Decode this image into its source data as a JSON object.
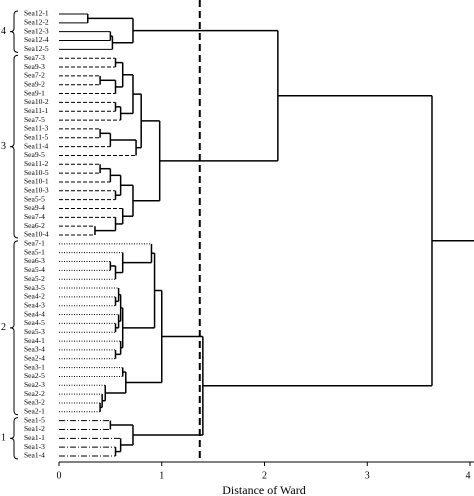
{
  "chart_data": {
    "type": "dendrogram",
    "xlabel": "Distance of Ward",
    "xlim": [
      0,
      4
    ],
    "xticks": [
      0,
      1,
      2,
      3,
      4
    ],
    "threshold": 1.37,
    "tree": {
      "height": 3.63,
      "children": [
        {
          "height": 2.13,
          "children": [
            {
              "group": "4",
              "line_style": "solid",
              "height": 0.72,
              "children": [
                {
                  "height": 0.28,
                  "children": [
                    "Sea12-1",
                    "Sea12-2"
                  ]
                },
                {
                  "height": 0.52,
                  "children": [
                    {
                      "height": 0.5,
                      "children": [
                        "Sea12-3",
                        "Sea12-4"
                      ]
                    },
                    "Sea12-5"
                  ]
                }
              ]
            },
            {
              "group": "3",
              "line_style": "dashed",
              "height": 0.98,
              "children": [
                {
                  "height": 0.8,
                  "children": [
                    {
                      "height": 0.72,
                      "children": [
                        {
                          "height": 0.62,
                          "children": [
                            {
                              "height": 0.55,
                              "children": [
                                "Sea7-3",
                                "Sea9-3"
                              ]
                            },
                            {
                              "height": 0.55,
                              "children": [
                                {
                                  "height": 0.4,
                                  "children": [
                                    "Sea7-2",
                                    "Sea9-2"
                                  ]
                                },
                                "Sea9-1"
                              ]
                            }
                          ]
                        },
                        {
                          "height": 0.6,
                          "children": [
                            {
                              "height": 0.55,
                              "children": [
                                "Sea10-2",
                                "Sea11-1"
                              ]
                            },
                            "Sea7-5"
                          ]
                        }
                      ]
                    },
                    {
                      "height": 0.75,
                      "children": [
                        {
                          "height": 0.5,
                          "children": [
                            {
                              "height": 0.4,
                              "children": [
                                "Sea11-3",
                                "Sea11-5"
                              ]
                            },
                            "Sea11-4"
                          ]
                        },
                        "Sea9-5"
                      ]
                    }
                  ]
                },
                {
                  "height": 0.72,
                  "children": [
                    {
                      "height": 0.6,
                      "children": [
                        {
                          "height": 0.5,
                          "children": [
                            {
                              "height": 0.4,
                              "children": [
                                "Sea11-2",
                                "Sea10-5"
                              ]
                            },
                            "Sea10-1"
                          ]
                        },
                        {
                          "height": 0.55,
                          "children": [
                            "Sea10-3",
                            "Sea5-5"
                          ]
                        }
                      ]
                    },
                    {
                      "height": 0.62,
                      "children": [
                        "Sea9-4",
                        {
                          "height": 0.55,
                          "children": [
                            "Sea7-4",
                            {
                              "height": 0.35,
                              "children": [
                                "Sea6-2",
                                "Sea10-4"
                              ]
                            }
                          ]
                        }
                      ]
                    }
                  ]
                }
              ]
            }
          ]
        },
        {
          "height": 1.4,
          "children": [
            {
              "group": "2",
              "line_style": "dotted",
              "height": 1.0,
              "children": [
                {
                  "height": 0.93,
                  "children": [
                    {
                      "height": 0.9,
                      "children": [
                        "Sea7-1",
                        {
                          "height": 0.62,
                          "children": [
                            "Sea5-1",
                            {
                              "height": 0.55,
                              "children": [
                                {
                                  "height": 0.5,
                                  "children": [
                                    "Sea6-3",
                                    "Sea5-4"
                                  ]
                                },
                                "Sea5-2"
                              ]
                            }
                          ]
                        }
                      ]
                    },
                    {
                      "height": 0.62,
                      "children": [
                        {
                          "height": 0.6,
                          "children": [
                            {
                              "height": 0.58,
                              "children": [
                                "Sea3-5",
                                {
                                  "height": 0.55,
                                  "children": [
                                    "Sea4-2",
                                    "Sea4-3"
                                  ]
                                }
                              ]
                            },
                            {
                              "height": 0.58,
                              "children": [
                                "Sea4-4",
                                {
                                  "height": 0.55,
                                  "children": [
                                    "Sea4-5",
                                    "Sea5-3"
                                  ]
                                }
                              ]
                            }
                          ]
                        },
                        {
                          "height": 0.6,
                          "children": [
                            "Sea4-1",
                            {
                              "height": 0.55,
                              "children": [
                                "Sea3-4",
                                "Sea2-4"
                              ]
                            }
                          ]
                        }
                      ]
                    }
                  ]
                },
                {
                  "height": 0.65,
                  "children": [
                    {
                      "height": 0.62,
                      "children": [
                        "Sea3-1",
                        "Sea2-5"
                      ]
                    },
                    {
                      "height": 0.45,
                      "children": [
                        "Sea2-3",
                        {
                          "height": 0.42,
                          "children": [
                            "Sea2-2",
                            {
                              "height": 0.4,
                              "children": [
                                "Sea3-2",
                                "Sea2-1"
                              ]
                            }
                          ]
                        }
                      ]
                    }
                  ]
                }
              ]
            },
            {
              "group": "1",
              "line_style": "dashdot",
              "height": 0.72,
              "children": [
                {
                  "height": 0.5,
                  "children": [
                    "Sea1-5",
                    "Sea1-2"
                  ]
                },
                {
                  "height": 0.6,
                  "children": [
                    "Sea1-1",
                    {
                      "height": 0.55,
                      "children": [
                        "Sea1-3",
                        "Sea1-4"
                      ]
                    }
                  ]
                }
              ]
            }
          ]
        }
      ]
    }
  }
}
